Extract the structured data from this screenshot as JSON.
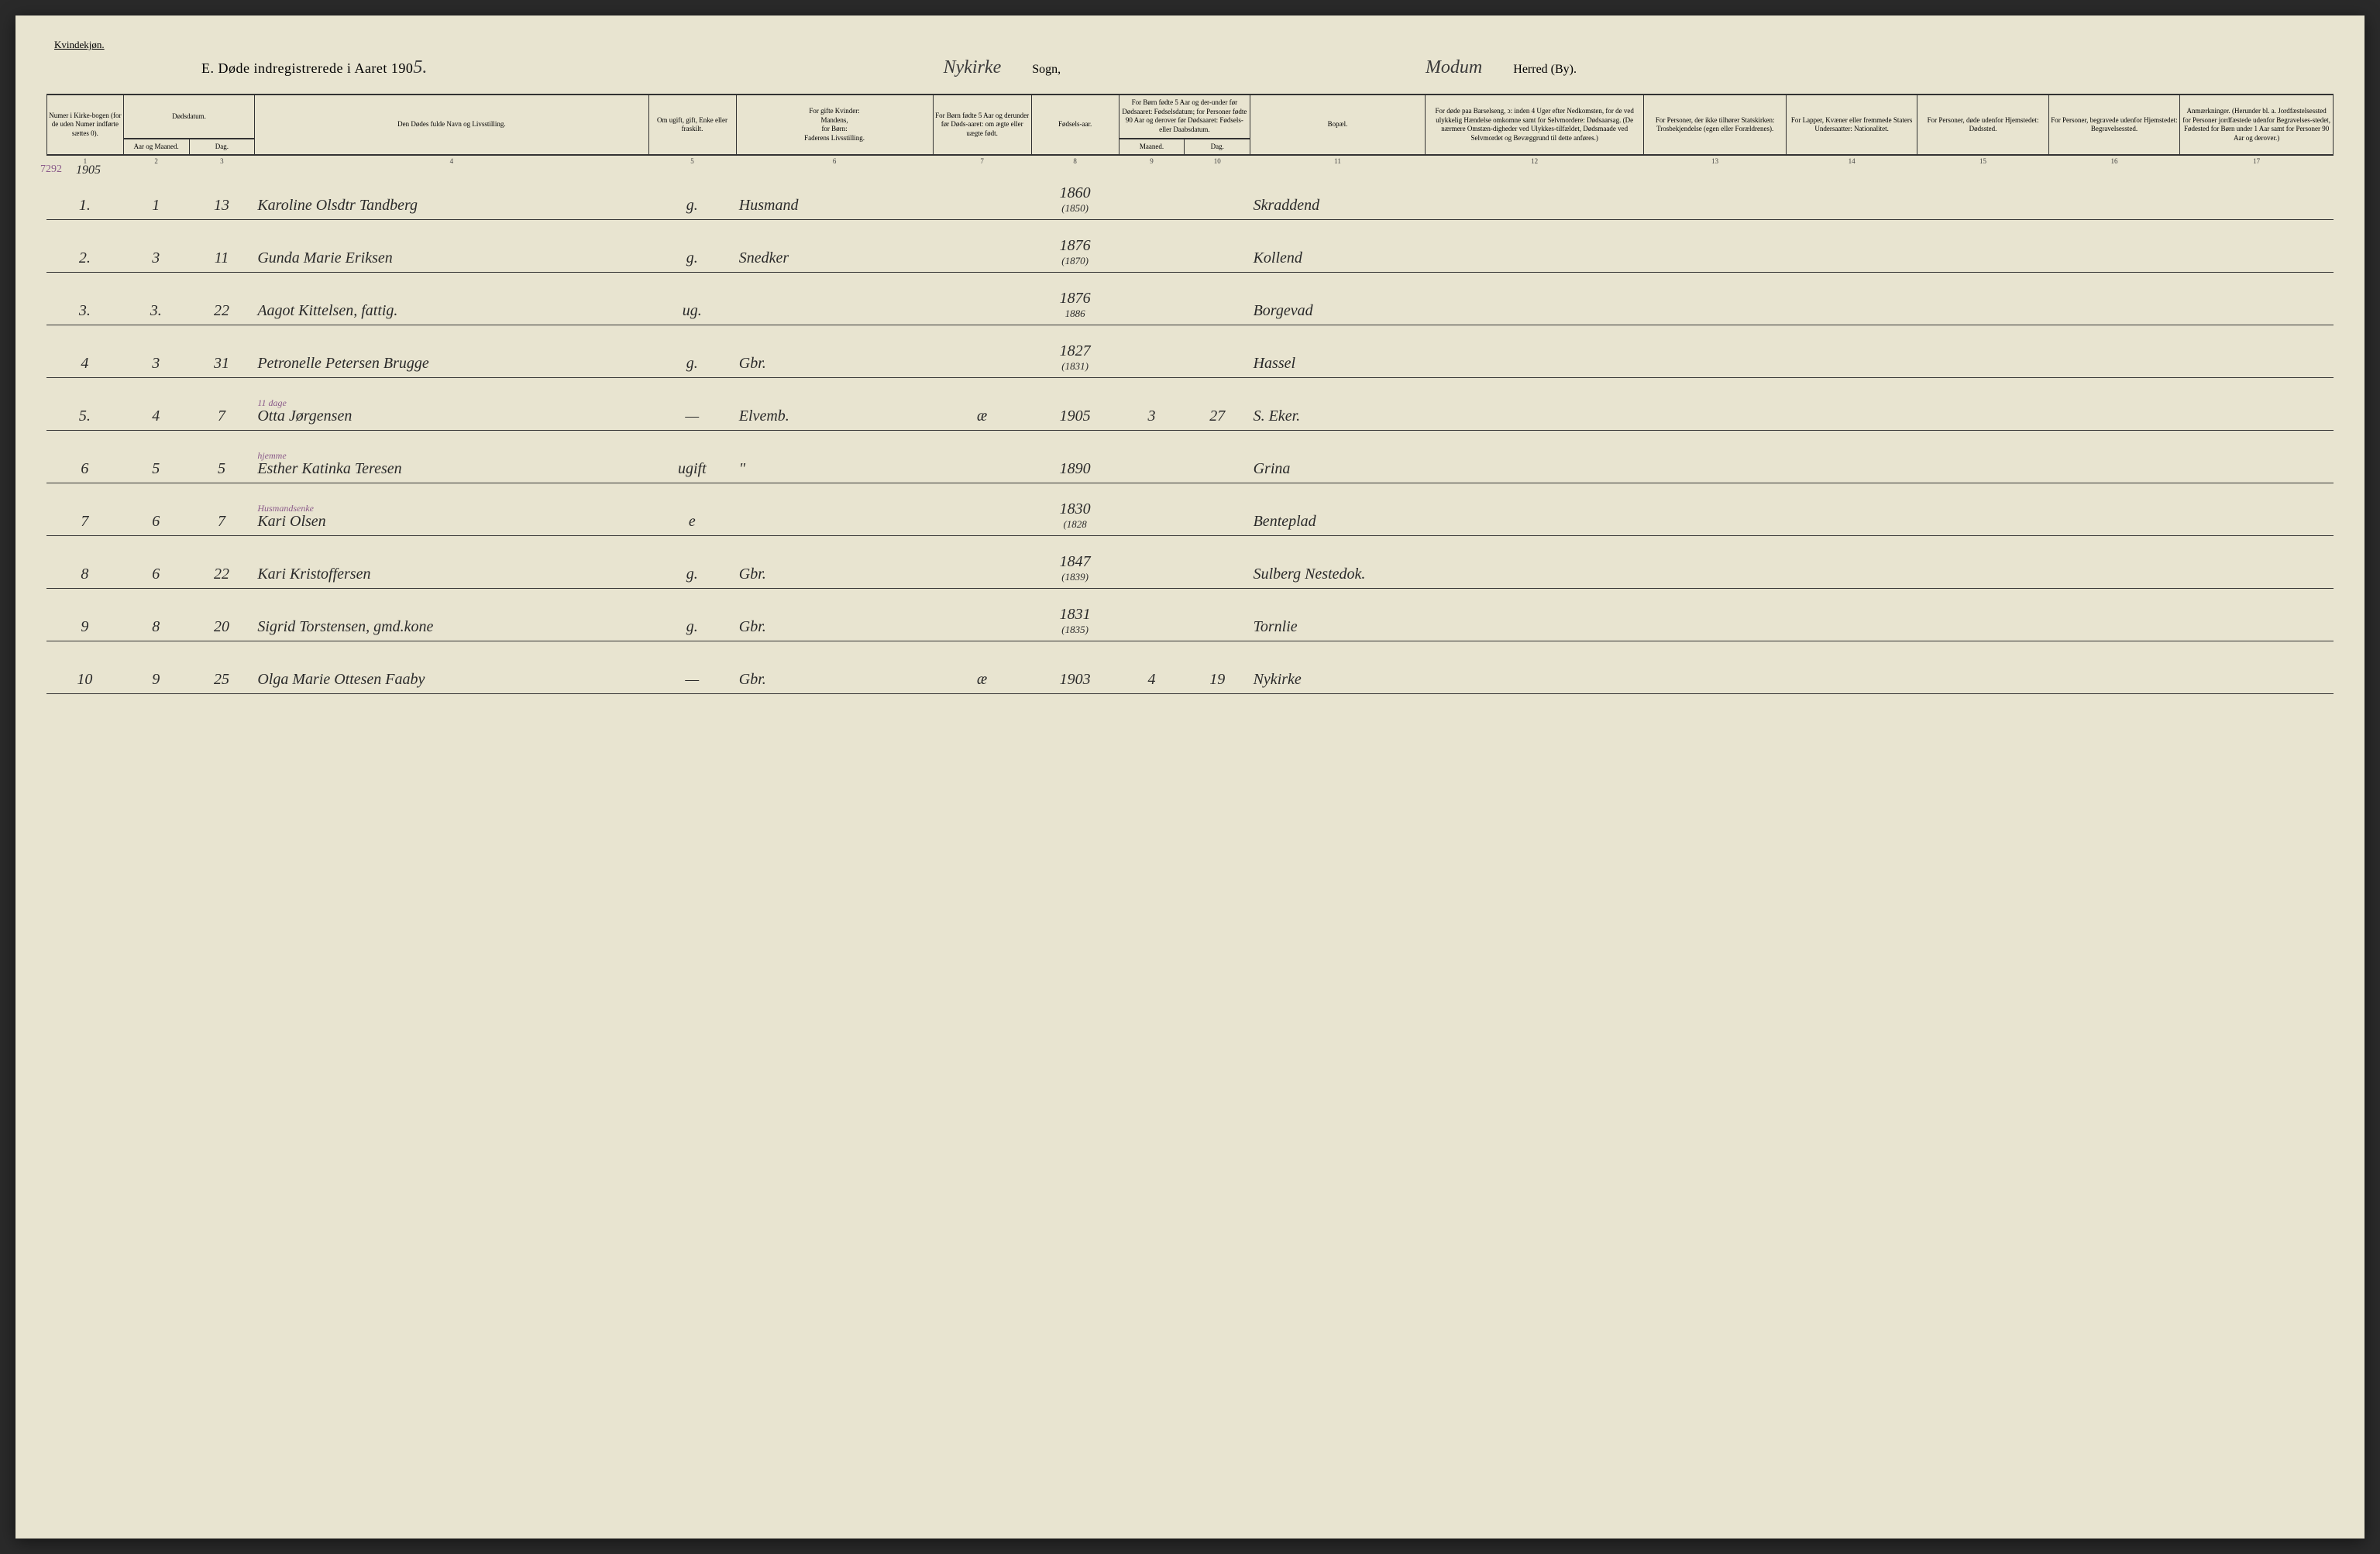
{
  "page": {
    "gender_label": "Kvindekjøn.",
    "title_prefix": "E.  Døde indregistrerede i Aaret 190",
    "year_suffix": "5.",
    "sogn_name": "Nykirke",
    "sogn_label": "Sogn,",
    "herred_name": "Modum",
    "herred_label": "Herred (By).",
    "margin_note": "7292",
    "margin_year": "1905"
  },
  "headers": {
    "h1": "Numer i Kirke-bogen (for de uden Numer indførte sættes 0).",
    "h2_top": "Dødsdatum.",
    "h2a": "Aar og Maaned.",
    "h2b": "Dag.",
    "h4": "Den Dødes fulde Navn og Livsstilling.",
    "h5": "Om ugift, gift, Enke eller fraskilt.",
    "h6_top": "For gifte Kvinder:",
    "h6_mid": "Mandens,",
    "h6_mid2": "for Børn:",
    "h6_bot": "Faderens Livsstilling.",
    "h7": "For Børn fødte 5 Aar og derunder før Døds-aaret: om ægte eller uægte født.",
    "h8": "Fødsels-aar.",
    "h9_10_top": "For Børn fødte 5 Aar og der-under før Dødsaaret: Fødselsdatum; for Personer fødte 90 Aar og derover før Dødsaaret: Fødsels- eller Daabsdatum.",
    "h9": "Maaned.",
    "h10": "Dag.",
    "h11": "Bopæl.",
    "h12": "For døde paa Barselseng, ɔ: inden 4 Uger efter Nedkomsten, for de ved ulykkelig Hændelse omkomne samt for Selvmordere: Dødsaarsag. (De nærmere Omstæn-digheder ved Ulykkes-tilfældet, Dødsmaade ved Selvmordet og Bevæggrund til dette anføres.)",
    "h13": "For Personer, der ikke tilhører Statskirken: Trosbekjendelse (egen eller Forældrenes).",
    "h14": "For Lapper, Kvæner eller fremmede Staters Undersaatter: Nationalitet.",
    "h15": "For Personer, døde udenfor Hjemstedet: Dødssted.",
    "h16": "For Personer, begravede udenfor Hjemstedet: Begravelsessted.",
    "h17": "Anmærkninger. (Herunder bl. a. Jordfæstelsessted for Personer jordfæstede udenfor Begravelses-stedet, Fødested for Børn under 1 Aar samt for Personer 90 Aar og derover.)"
  },
  "colnums": [
    "1",
    "2",
    "3",
    "4",
    "5",
    "6",
    "7",
    "8",
    "9",
    "10",
    "11",
    "12",
    "13",
    "14",
    "15",
    "16",
    "17"
  ],
  "rows": [
    {
      "n": "1.",
      "m": "1",
      "d": "13",
      "name": "Karoline Olsdtr Tandberg",
      "civ": "g.",
      "occ": "Husmand",
      "leg": "",
      "yr": "1860",
      "yr2": "(1850)",
      "mn": "",
      "dg": "",
      "res": "Skraddend",
      "ann": ""
    },
    {
      "n": "2.",
      "m": "3",
      "d": "11",
      "name": "Gunda Marie Eriksen",
      "civ": "g.",
      "occ": "Snedker",
      "leg": "",
      "yr": "1876",
      "yr2": "(1870)",
      "mn": "",
      "dg": "",
      "res": "Kollend",
      "ann": ""
    },
    {
      "n": "3.",
      "m": "3.",
      "d": "22",
      "name": "Aagot Kittelsen, fattig.",
      "civ": "ug.",
      "occ": "",
      "leg": "",
      "yr": "1876",
      "yr2": "1886",
      "mn": "",
      "dg": "",
      "res": "Borgevad",
      "ann": ""
    },
    {
      "n": "4",
      "m": "3",
      "d": "31",
      "name": "Petronelle Petersen Brugge",
      "civ": "g.",
      "occ": "Gbr.",
      "leg": "",
      "yr": "1827",
      "yr2": "(1831)",
      "mn": "",
      "dg": "",
      "res": "Hassel",
      "ann": ""
    },
    {
      "n": "5.",
      "m": "4",
      "d": "7",
      "name": "Otta Jørgensen",
      "civ": "—",
      "occ": "Elvemb.",
      "leg": "æ",
      "yr": "1905",
      "yr2": "",
      "mn": "3",
      "dg": "27",
      "res": "S. Eker.",
      "ann": "11 dage"
    },
    {
      "n": "6",
      "m": "5",
      "d": "5",
      "name": "Esther Katinka Teresen",
      "civ": "ugift",
      "occ": "\"",
      "leg": "",
      "yr": "1890",
      "yr2": "",
      "mn": "",
      "dg": "",
      "res": "Grina",
      "ann": "hjemme"
    },
    {
      "n": "7",
      "m": "6",
      "d": "7",
      "name": "Kari Olsen",
      "civ": "e",
      "occ": "",
      "leg": "",
      "yr": "1830",
      "yr2": "(1828",
      "mn": "",
      "dg": "",
      "res": "Benteplad",
      "ann": "Husmandsenke"
    },
    {
      "n": "8",
      "m": "6",
      "d": "22",
      "name": "Kari Kristoffersen",
      "civ": "g.",
      "occ": "Gbr.",
      "leg": "",
      "yr": "1847",
      "yr2": "(1839)",
      "mn": "",
      "dg": "",
      "res": "Sulberg Nestedok.",
      "ann": ""
    },
    {
      "n": "9",
      "m": "8",
      "d": "20",
      "name": "Sigrid Torstensen, gmd.kone",
      "civ": "g.",
      "occ": "Gbr.",
      "leg": "",
      "yr": "1831",
      "yr2": "(1835)",
      "mn": "",
      "dg": "",
      "res": "Tornlie",
      "ann": ""
    },
    {
      "n": "10",
      "m": "9",
      "d": "25",
      "name": "Olga Marie Ottesen Faaby",
      "civ": "—",
      "occ": "Gbr.",
      "leg": "æ",
      "yr": "1903",
      "yr2": "",
      "mn": "4",
      "dg": "19",
      "res": "Nykirke",
      "ann": ""
    }
  ]
}
